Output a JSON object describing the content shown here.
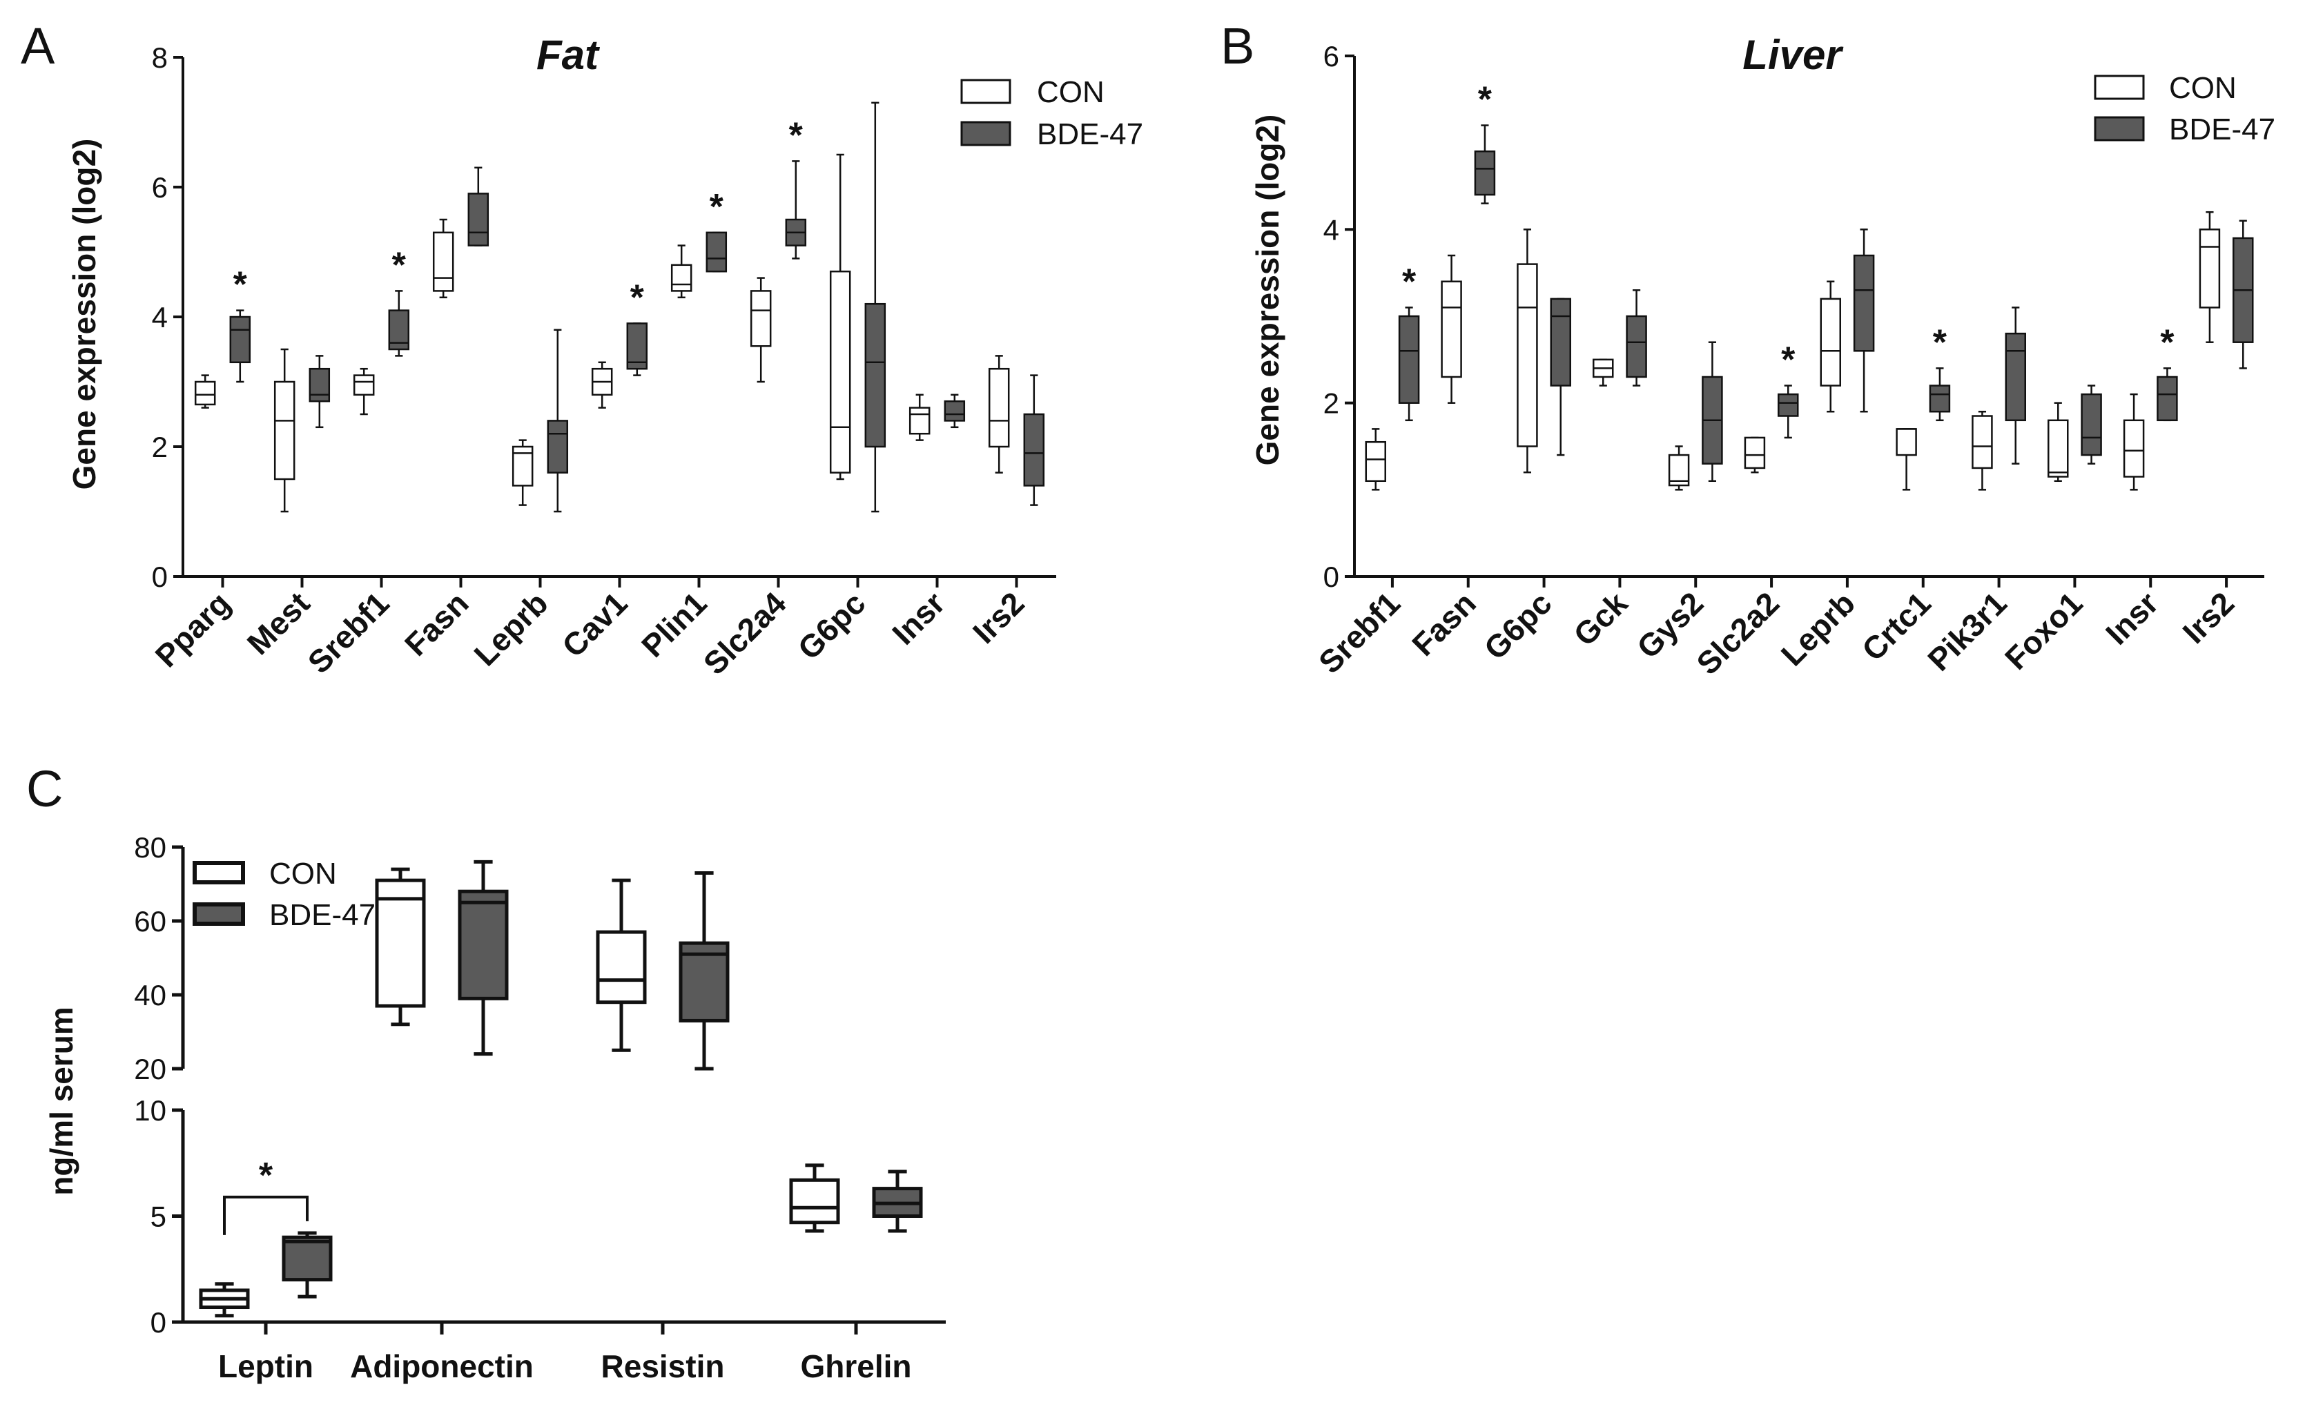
{
  "figure": {
    "panels": [
      "A",
      "B",
      "C"
    ]
  },
  "legend": {
    "con": "CON",
    "bde": "BDE-47"
  },
  "colors": {
    "con_fill": "#ffffff",
    "bde_fill": "#5a5a5a",
    "stroke": "#111111"
  },
  "chart_data": [
    {
      "id": "A",
      "type": "boxplot",
      "title": "Fat",
      "ylabel": "Gene expression (log2)",
      "ylim": [
        0,
        8
      ],
      "yticks": [
        0,
        2,
        4,
        6,
        8
      ],
      "categories": [
        "Pparg",
        "Mest",
        "Srebf1",
        "Fasn",
        "Leprb",
        "Cav1",
        "Plin1",
        "Slc2a4",
        "G6pc",
        "Insr",
        "Irs2"
      ],
      "series": [
        {
          "name": "CON",
          "boxes": [
            {
              "min": 2.6,
              "q1": 2.65,
              "median": 2.8,
              "q3": 3.0,
              "max": 3.1
            },
            {
              "min": 1.0,
              "q1": 1.5,
              "median": 2.4,
              "q3": 3.0,
              "max": 3.5
            },
            {
              "min": 2.5,
              "q1": 2.8,
              "median": 3.0,
              "q3": 3.1,
              "max": 3.2
            },
            {
              "min": 4.3,
              "q1": 4.4,
              "median": 4.6,
              "q3": 5.3,
              "max": 5.5
            },
            {
              "min": 1.1,
              "q1": 1.4,
              "median": 1.9,
              "q3": 2.0,
              "max": 2.1
            },
            {
              "min": 2.6,
              "q1": 2.8,
              "median": 3.0,
              "q3": 3.2,
              "max": 3.3
            },
            {
              "min": 4.3,
              "q1": 4.4,
              "median": 4.5,
              "q3": 4.8,
              "max": 5.1
            },
            {
              "min": 3.0,
              "q1": 3.55,
              "median": 4.1,
              "q3": 4.4,
              "max": 4.6
            },
            {
              "min": 1.5,
              "q1": 1.6,
              "median": 2.3,
              "q3": 4.7,
              "max": 6.5
            },
            {
              "min": 2.1,
              "q1": 2.2,
              "median": 2.5,
              "q3": 2.6,
              "max": 2.8
            },
            {
              "min": 1.6,
              "q1": 2.0,
              "median": 2.4,
              "q3": 3.2,
              "max": 3.4
            }
          ]
        },
        {
          "name": "BDE-47",
          "boxes": [
            {
              "min": 3.0,
              "q1": 3.3,
              "median": 3.8,
              "q3": 4.0,
              "max": 4.1
            },
            {
              "min": 2.3,
              "q1": 2.7,
              "median": 2.8,
              "q3": 3.2,
              "max": 3.4
            },
            {
              "min": 3.4,
              "q1": 3.5,
              "median": 3.6,
              "q3": 4.1,
              "max": 4.4
            },
            {
              "min": 5.1,
              "q1": 5.1,
              "median": 5.3,
              "q3": 5.9,
              "max": 6.3
            },
            {
              "min": 1.0,
              "q1": 1.6,
              "median": 2.2,
              "q3": 2.4,
              "max": 3.8
            },
            {
              "min": 3.1,
              "q1": 3.2,
              "median": 3.3,
              "q3": 3.9,
              "max": 3.9
            },
            {
              "min": 4.7,
              "q1": 4.7,
              "median": 4.9,
              "q3": 5.3,
              "max": 5.3
            },
            {
              "min": 4.9,
              "q1": 5.1,
              "median": 5.3,
              "q3": 5.5,
              "max": 6.4
            },
            {
              "min": 1.0,
              "q1": 2.0,
              "median": 3.3,
              "q3": 4.2,
              "max": 7.3
            },
            {
              "min": 2.3,
              "q1": 2.4,
              "median": 2.5,
              "q3": 2.7,
              "max": 2.8
            },
            {
              "min": 1.1,
              "q1": 1.4,
              "median": 1.9,
              "q3": 2.5,
              "max": 3.1
            }
          ]
        }
      ],
      "significant": [
        0,
        2,
        5,
        6,
        7
      ],
      "sig_label": "*"
    },
    {
      "id": "B",
      "type": "boxplot",
      "title": "Liver",
      "ylabel": "Gene expression (log2)",
      "ylim": [
        0,
        6
      ],
      "yticks": [
        0,
        2,
        4,
        6
      ],
      "categories": [
        "Srebf1",
        "Fasn",
        "G6pc",
        "Gck",
        "Gys2",
        "Slc2a2",
        "Leprb",
        "Crtc1",
        "Pik3r1",
        "Foxo1",
        "Insr",
        "Irs2"
      ],
      "series": [
        {
          "name": "CON",
          "boxes": [
            {
              "min": 1.0,
              "q1": 1.1,
              "median": 1.35,
              "q3": 1.55,
              "max": 1.7
            },
            {
              "min": 2.0,
              "q1": 2.3,
              "median": 3.1,
              "q3": 3.4,
              "max": 3.7
            },
            {
              "min": 1.2,
              "q1": 1.5,
              "median": 3.1,
              "q3": 3.6,
              "max": 4.0
            },
            {
              "min": 2.2,
              "q1": 2.3,
              "median": 2.4,
              "q3": 2.5,
              "max": 2.5
            },
            {
              "min": 1.0,
              "q1": 1.05,
              "median": 1.1,
              "q3": 1.4,
              "max": 1.5
            },
            {
              "min": 1.2,
              "q1": 1.25,
              "median": 1.4,
              "q3": 1.6,
              "max": 1.6
            },
            {
              "min": 1.9,
              "q1": 2.2,
              "median": 2.6,
              "q3": 3.2,
              "max": 3.4
            },
            {
              "min": 1.0,
              "q1": 1.4,
              "median": 1.7,
              "q3": 1.7,
              "max": 1.7
            },
            {
              "min": 1.0,
              "q1": 1.25,
              "median": 1.5,
              "q3": 1.85,
              "max": 1.9
            },
            {
              "min": 1.1,
              "q1": 1.15,
              "median": 1.2,
              "q3": 1.8,
              "max": 2.0
            },
            {
              "min": 1.0,
              "q1": 1.15,
              "median": 1.45,
              "q3": 1.8,
              "max": 2.1
            },
            {
              "min": 2.7,
              "q1": 3.1,
              "median": 3.8,
              "q3": 4.0,
              "max": 4.2
            }
          ]
        },
        {
          "name": "BDE-47",
          "boxes": [
            {
              "min": 1.8,
              "q1": 2.0,
              "median": 2.6,
              "q3": 3.0,
              "max": 3.1
            },
            {
              "min": 4.3,
              "q1": 4.4,
              "median": 4.7,
              "q3": 4.9,
              "max": 5.2
            },
            {
              "min": 1.4,
              "q1": 2.2,
              "median": 3.0,
              "q3": 3.2,
              "max": 3.2
            },
            {
              "min": 2.2,
              "q1": 2.3,
              "median": 2.7,
              "q3": 3.0,
              "max": 3.3
            },
            {
              "min": 1.1,
              "q1": 1.3,
              "median": 1.8,
              "q3": 2.3,
              "max": 2.7
            },
            {
              "min": 1.6,
              "q1": 1.85,
              "median": 2.0,
              "q3": 2.1,
              "max": 2.2
            },
            {
              "min": 1.9,
              "q1": 2.6,
              "median": 3.3,
              "q3": 3.7,
              "max": 4.0
            },
            {
              "min": 1.8,
              "q1": 1.9,
              "median": 2.1,
              "q3": 2.2,
              "max": 2.4
            },
            {
              "min": 1.3,
              "q1": 1.8,
              "median": 2.6,
              "q3": 2.8,
              "max": 3.1
            },
            {
              "min": 1.3,
              "q1": 1.4,
              "median": 1.6,
              "q3": 2.1,
              "max": 2.2
            },
            {
              "min": 1.8,
              "q1": 1.8,
              "median": 2.1,
              "q3": 2.3,
              "max": 2.4
            },
            {
              "min": 2.4,
              "q1": 2.7,
              "median": 3.3,
              "q3": 3.9,
              "max": 4.1
            }
          ]
        }
      ],
      "significant": [
        0,
        1,
        5,
        7,
        10
      ],
      "sig_label": "*"
    },
    {
      "id": "C",
      "type": "boxplot",
      "ylabel": "ng/ml serum",
      "broken_axis": true,
      "upper_ylim": [
        20,
        80
      ],
      "upper_yticks": [
        20,
        40,
        60,
        80
      ],
      "lower_ylim": [
        0,
        10
      ],
      "lower_yticks": [
        0,
        5,
        10
      ],
      "categories": [
        "Leptin",
        "Adiponectin",
        "Resistin",
        "Ghrelin"
      ],
      "series": [
        {
          "name": "CON",
          "boxes": [
            {
              "min": 0.3,
              "q1": 0.7,
              "median": 1.1,
              "q3": 1.5,
              "max": 1.8
            },
            {
              "min": 32,
              "q1": 37,
              "median": 66,
              "q3": 71,
              "max": 74
            },
            {
              "min": 25,
              "q1": 38,
              "median": 44,
              "q3": 57,
              "max": 71
            },
            {
              "min": 4.3,
              "q1": 4.7,
              "median": 5.4,
              "q3": 6.7,
              "max": 7.4
            }
          ]
        },
        {
          "name": "BDE-47",
          "boxes": [
            {
              "min": 1.2,
              "q1": 2.0,
              "median": 3.8,
              "q3": 4.0,
              "max": 4.2
            },
            {
              "min": 24,
              "q1": 39,
              "median": 65,
              "q3": 68,
              "max": 76
            },
            {
              "min": 20,
              "q1": 33,
              "median": 51,
              "q3": 54,
              "max": 73
            },
            {
              "min": 4.3,
              "q1": 5.0,
              "median": 5.6,
              "q3": 6.3,
              "max": 7.1
            }
          ]
        }
      ],
      "significant_bracket": {
        "category": 0,
        "label": "*"
      }
    }
  ]
}
